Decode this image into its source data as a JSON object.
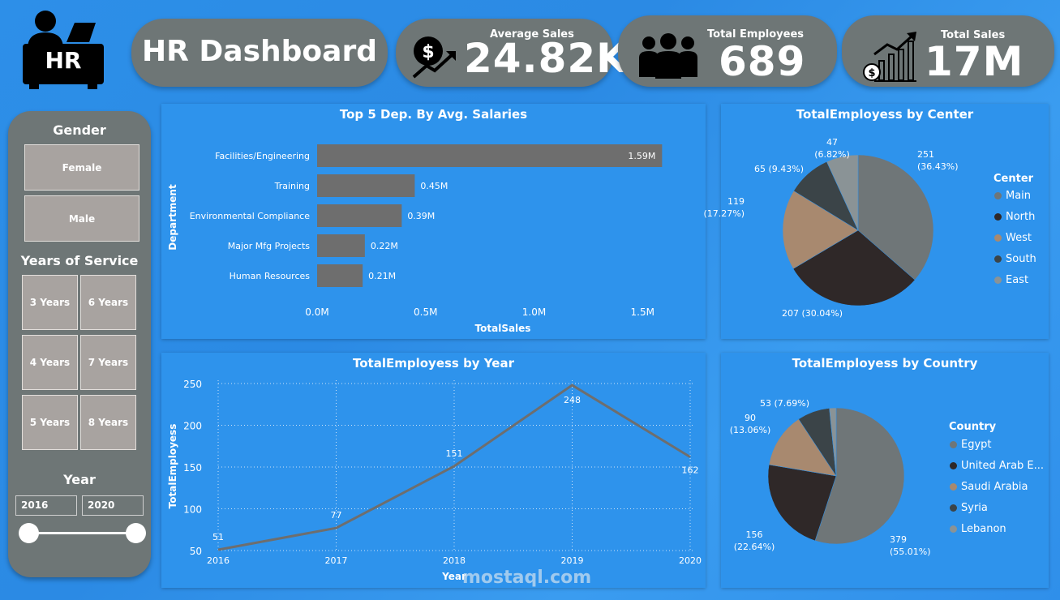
{
  "header": {
    "title": "HR Dashboard",
    "logo_text": "HR"
  },
  "kpis": [
    {
      "title": "Average Sales",
      "value": "24.82K",
      "icon": "dollar-growth-icon"
    },
    {
      "title": "Total Employees",
      "value": "689",
      "icon": "group-icon"
    },
    {
      "title": "Total Sales",
      "value": "17M",
      "icon": "bar-growth-icon"
    }
  ],
  "sidebar": {
    "gender_heading": "Gender",
    "gender_options": [
      "Female",
      "Male"
    ],
    "years_heading": "Years of Service",
    "years_options": [
      "3 Years",
      "6 Years",
      "4 Years",
      "7 Years",
      "5 Years",
      "8 Years"
    ],
    "year_heading": "Year",
    "year_from": "2016",
    "year_to": "2020",
    "year_range_fraction": [
      0,
      1
    ]
  },
  "colors": {
    "bar": "#6e6e6e",
    "main": "#6f7678",
    "north": "#2f2828",
    "west": "#a8896f",
    "south": "#3b4448",
    "east": "#8a9396",
    "line": "#6e6e6e"
  },
  "chart_data": [
    {
      "type": "bar",
      "title": "Top 5 Dep. By Avg. Salaries",
      "xlabel": "TotalSales",
      "ylabel": "Department",
      "categories": [
        "Facilities/Engineering",
        "Training",
        "Environmental Compliance",
        "Major Mfg Projects",
        "Human Resources"
      ],
      "values": [
        1.59,
        0.45,
        0.39,
        0.22,
        0.21
      ],
      "data_labels": [
        "1.59M",
        "0.45M",
        "0.39M",
        "0.22M",
        "0.21M"
      ],
      "xlim": [
        0,
        1.6
      ],
      "xticks": [
        "0.0M",
        "0.5M",
        "1.0M",
        "1.5M"
      ]
    },
    {
      "type": "pie",
      "title": "TotalEmployess by Center",
      "legend_title": "Center",
      "labels": [
        "Main",
        "North",
        "West",
        "South",
        "East"
      ],
      "values": [
        251,
        207,
        119,
        65,
        47
      ],
      "data_labels": [
        "251\n(36.43%)",
        "207 (30.04%)",
        "119\n(17.27%)",
        "65 (9.43%)",
        "47\n(6.82%)"
      ]
    },
    {
      "type": "line",
      "title": "TotalEmployess by Year",
      "xlabel": "Year",
      "ylabel": "TotalEmployess",
      "x": [
        "2016",
        "2017",
        "2018",
        "2019",
        "2020"
      ],
      "values": [
        51,
        77,
        151,
        248,
        162
      ],
      "ylim": [
        50,
        250
      ],
      "yticks": [
        "50",
        "100",
        "150",
        "200",
        "250"
      ]
    },
    {
      "type": "pie",
      "title": "TotalEmployess by Country",
      "legend_title": "Country",
      "labels": [
        "Egypt",
        "United Arab E...",
        "Saudi Arabia",
        "Syria",
        "Lebanon"
      ],
      "values": [
        379,
        156,
        90,
        53,
        11
      ],
      "data_labels": [
        "379\n(55.01%)",
        "156\n(22.64%)",
        "90\n(13.06%)",
        "53 (7.69%)",
        ""
      ]
    }
  ],
  "watermark": {
    "text": "mostaql.com"
  }
}
